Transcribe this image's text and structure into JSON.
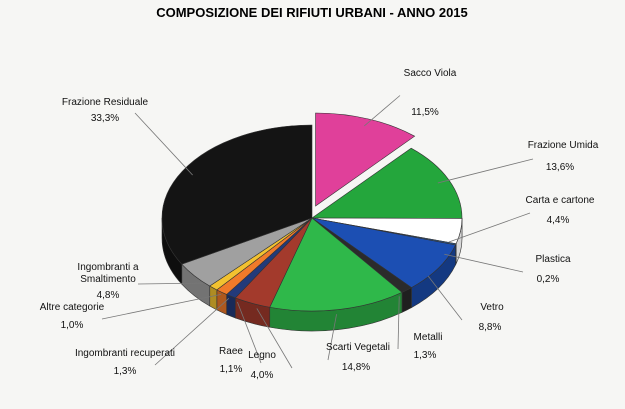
{
  "chart_data": {
    "type": "pie",
    "title": "COMPOSIZIONE DEI RIFIUTI URBANI - ANNO 2015",
    "slices": [
      {
        "label": "Sacco Viola",
        "value_text": "11,5%",
        "value": 11.5,
        "color": "#e0409a"
      },
      {
        "label": "Frazione Umida",
        "value_text": "13,6%",
        "value": 13.6,
        "color": "#24a63c"
      },
      {
        "label": "Carta e cartone",
        "value_text": "4,4%",
        "value": 4.4,
        "color": "#ffffff"
      },
      {
        "label": "Plastica",
        "value_text": "0,2%",
        "value": 0.2,
        "color": "#2a6fbe"
      },
      {
        "label": "Vetro",
        "value_text": "8,8%",
        "value": 8.8,
        "color": "#1c4fb3"
      },
      {
        "label": "Metalli",
        "value_text": "1,3%",
        "value": 1.3,
        "color": "#2b2b2b"
      },
      {
        "label": "Scarti Vegetali",
        "value_text": "14,8%",
        "value": 14.8,
        "color": "#2fb84a"
      },
      {
        "label": "Legno",
        "value_text": "4,0%",
        "value": 4.0,
        "color": "#a33a2c"
      },
      {
        "label": "Raee",
        "value_text": "1,1%",
        "value": 1.1,
        "color": "#233a7a"
      },
      {
        "label": "Ingombranti recuperati",
        "value_text": "1,3%",
        "value": 1.3,
        "color": "#f07a2a"
      },
      {
        "label": "Altre categorie",
        "value_text": "1,0%",
        "value": 1.0,
        "color": "#f2c230"
      },
      {
        "label": "Ingombranti a Smaltimento",
        "value_text": "4,8%",
        "value": 4.8,
        "color": "#a0a0a0"
      },
      {
        "label": "Frazione Residuale",
        "value_text": "33,3%",
        "value": 33.3,
        "color": "#141414"
      }
    ]
  }
}
